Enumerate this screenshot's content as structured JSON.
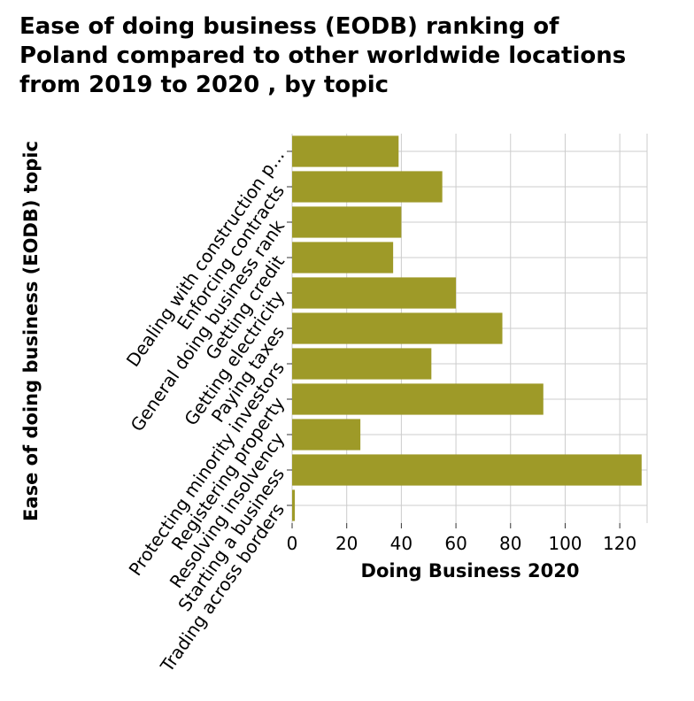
{
  "chart_data": {
    "type": "bar",
    "orientation": "horizontal",
    "title": "Ease of doing business (EODB) ranking of\nPoland compared to other worldwide locations\nfrom 2019 to 2020 , by topic",
    "xlabel": "Doing Business 2020",
    "ylabel": "Ease of doing business (EODB) topic",
    "categories": [
      "Dealing with construction p...",
      "Enforcing contracts",
      "General doing business rank",
      "Getting credit",
      "Getting electricity",
      "Paying taxes",
      "Protecting minority investors",
      "Registering property",
      "Resolving insolvency",
      "Starting a business",
      "Trading across borders"
    ],
    "values": [
      39,
      55,
      40,
      37,
      60,
      77,
      51,
      92,
      25,
      128,
      1
    ],
    "xlim": [
      0,
      130
    ],
    "xticks": [
      0,
      20,
      40,
      60,
      80,
      100,
      120
    ],
    "grid": true,
    "bar_color": "#9e9a28"
  }
}
